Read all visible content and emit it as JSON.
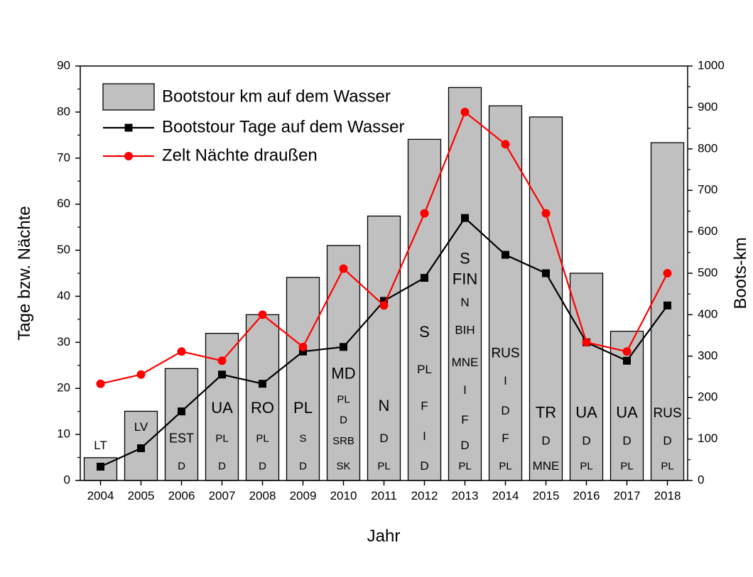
{
  "chart_data": {
    "type": "bar+line",
    "xlabel": "Jahr",
    "ylabel_left": "Tage bzw. Nächte",
    "ylabel_right": "Boots-km",
    "ylim_left": [
      0,
      90
    ],
    "yticks_left": [
      0,
      10,
      20,
      30,
      40,
      50,
      60,
      70,
      80,
      90
    ],
    "ylim_right": [
      0,
      1000
    ],
    "yticks_right": [
      0,
      100,
      200,
      300,
      400,
      500,
      600,
      700,
      800,
      900,
      1000
    ],
    "categories": [
      "2004",
      "2005",
      "2006",
      "2007",
      "2008",
      "2009",
      "2010",
      "2011",
      "2012",
      "2013",
      "2014",
      "2015",
      "2016",
      "2017",
      "2018"
    ],
    "grid": false,
    "legend_position": "top-left",
    "series": [
      {
        "name": "Bootstour km auf dem Wasser",
        "kind": "bar",
        "axis": "right",
        "color": "#c0c0c0",
        "values": [
          55,
          167,
          270,
          355,
          400,
          490,
          567,
          638,
          823,
          948,
          904,
          877,
          500,
          360,
          815
        ]
      },
      {
        "name": "Bootstour Tage auf dem Wasser",
        "kind": "line",
        "axis": "left",
        "color": "#000000",
        "marker": "square",
        "values": [
          3,
          7,
          15,
          23,
          21,
          28,
          29,
          39,
          44,
          57,
          49,
          45,
          30,
          26,
          38
        ]
      },
      {
        "name": "Zelt Nächte draußen",
        "kind": "line",
        "axis": "left",
        "color": "#ff0000",
        "marker": "circle",
        "values": [
          21,
          23,
          28,
          26,
          36,
          29,
          46,
          38,
          58,
          80,
          73,
          58,
          30,
          28,
          45
        ]
      }
    ],
    "annotations": [
      {
        "year": "2004",
        "labels": [
          {
            "text": "LT",
            "at": 7.5,
            "size": 17
          }
        ]
      },
      {
        "year": "2005",
        "labels": [
          {
            "text": "LV",
            "at": 11.5,
            "size": 17
          }
        ]
      },
      {
        "year": "2006",
        "labels": [
          {
            "text": "EST",
            "at": 9,
            "size": 18
          },
          {
            "text": "D",
            "at": 3,
            "size": 15
          }
        ]
      },
      {
        "year": "2007",
        "labels": [
          {
            "text": "UA",
            "at": 15.5,
            "size": 22
          },
          {
            "text": "PL",
            "at": 9,
            "size": 15
          },
          {
            "text": "D",
            "at": 3,
            "size": 15
          }
        ]
      },
      {
        "year": "2008",
        "labels": [
          {
            "text": "RO",
            "at": 15.5,
            "size": 22
          },
          {
            "text": "PL",
            "at": 9,
            "size": 15
          },
          {
            "text": "D",
            "at": 3,
            "size": 15
          }
        ]
      },
      {
        "year": "2009",
        "labels": [
          {
            "text": "PL",
            "at": 15.5,
            "size": 22
          },
          {
            "text": "S",
            "at": 9,
            "size": 15
          },
          {
            "text": "D",
            "at": 3,
            "size": 15
          }
        ]
      },
      {
        "year": "2010",
        "labels": [
          {
            "text": "MD",
            "at": 23,
            "size": 22
          },
          {
            "text": "PL",
            "at": 17.5,
            "size": 15
          },
          {
            "text": "D",
            "at": 13,
            "size": 15
          },
          {
            "text": "SRB",
            "at": 8.5,
            "size": 15
          },
          {
            "text": "SK",
            "at": 3,
            "size": 15
          }
        ]
      },
      {
        "year": "2011",
        "labels": [
          {
            "text": "N",
            "at": 16,
            "size": 22
          },
          {
            "text": "D",
            "at": 9,
            "size": 17
          },
          {
            "text": "PL",
            "at": 3,
            "size": 15
          }
        ]
      },
      {
        "year": "2012",
        "labels": [
          {
            "text": "S",
            "at": 32,
            "size": 22
          },
          {
            "text": "PL",
            "at": 24,
            "size": 17
          },
          {
            "text": "F",
            "at": 16,
            "size": 17
          },
          {
            "text": "I",
            "at": 9.5,
            "size": 17
          },
          {
            "text": "D",
            "at": 3,
            "size": 17
          }
        ]
      },
      {
        "year": "2013",
        "labels": [
          {
            "text": "S",
            "at": 48,
            "size": 22
          },
          {
            "text": "FIN",
            "at": 43.5,
            "size": 22
          },
          {
            "text": "N",
            "at": 38.5,
            "size": 17
          },
          {
            "text": "BIH",
            "at": 32.5,
            "size": 17
          },
          {
            "text": "MNE",
            "at": 25.5,
            "size": 17
          },
          {
            "text": "I",
            "at": 19.5,
            "size": 17
          },
          {
            "text": "F",
            "at": 13,
            "size": 17
          },
          {
            "text": "D",
            "at": 7.5,
            "size": 17
          },
          {
            "text": "PL",
            "at": 3,
            "size": 15
          }
        ]
      },
      {
        "year": "2014",
        "labels": [
          {
            "text": "RUS",
            "at": 27.5,
            "size": 19
          },
          {
            "text": "I",
            "at": 21.5,
            "size": 17
          },
          {
            "text": "D",
            "at": 15,
            "size": 17
          },
          {
            "text": "F",
            "at": 9,
            "size": 17
          },
          {
            "text": "PL",
            "at": 3,
            "size": 15
          }
        ]
      },
      {
        "year": "2015",
        "labels": [
          {
            "text": "TR",
            "at": 14.5,
            "size": 22
          },
          {
            "text": "D",
            "at": 8.5,
            "size": 17
          },
          {
            "text": "MNE",
            "at": 3,
            "size": 17
          }
        ]
      },
      {
        "year": "2016",
        "labels": [
          {
            "text": "UA",
            "at": 14.5,
            "size": 22
          },
          {
            "text": "D",
            "at": 8.5,
            "size": 17
          },
          {
            "text": "PL",
            "at": 3,
            "size": 15
          }
        ]
      },
      {
        "year": "2017",
        "labels": [
          {
            "text": "UA",
            "at": 14.5,
            "size": 22
          },
          {
            "text": "D",
            "at": 8.5,
            "size": 17
          },
          {
            "text": "PL",
            "at": 3,
            "size": 15
          }
        ]
      },
      {
        "year": "2018",
        "labels": [
          {
            "text": "RUS",
            "at": 14.5,
            "size": 19
          },
          {
            "text": "D",
            "at": 8.5,
            "size": 17
          },
          {
            "text": "PL",
            "at": 3,
            "size": 15
          }
        ]
      }
    ]
  }
}
